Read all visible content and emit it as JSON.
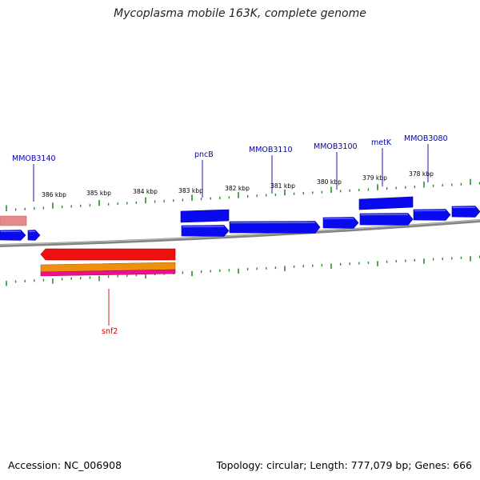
{
  "title": "Mycoplasma mobile 163K, complete genome",
  "footer": {
    "accession": "Accession: NC_006908",
    "summary": "Topology: circular; Length: 777,079 bp; Genes: 666"
  },
  "colors": {
    "forward_gene": "#0a0af0",
    "reverse_gene": "#ee0f0f",
    "reverse_gene_2": "#ee8f0f",
    "reverse_gene_3": "#ee0f8f",
    "pink_gene": "#e88a8a",
    "backbone": "#828282",
    "tick": "#2a8a2a",
    "forward_label": "#0000aa",
    "reverse_label": "#cc0000"
  },
  "gene_labels_forward": [
    "MMOB3140",
    "pncB",
    "MMOB3110",
    "MMOB3100",
    "metK",
    "MMOB3080"
  ],
  "gene_labels_reverse": [
    "snf2"
  ],
  "tick_labels": [
    "386 kbp",
    "385 kbp",
    "384 kbp",
    "383 kbp",
    "382 kbp",
    "381 kbp",
    "380 kbp",
    "379 kbp",
    "378 kbp"
  ]
}
